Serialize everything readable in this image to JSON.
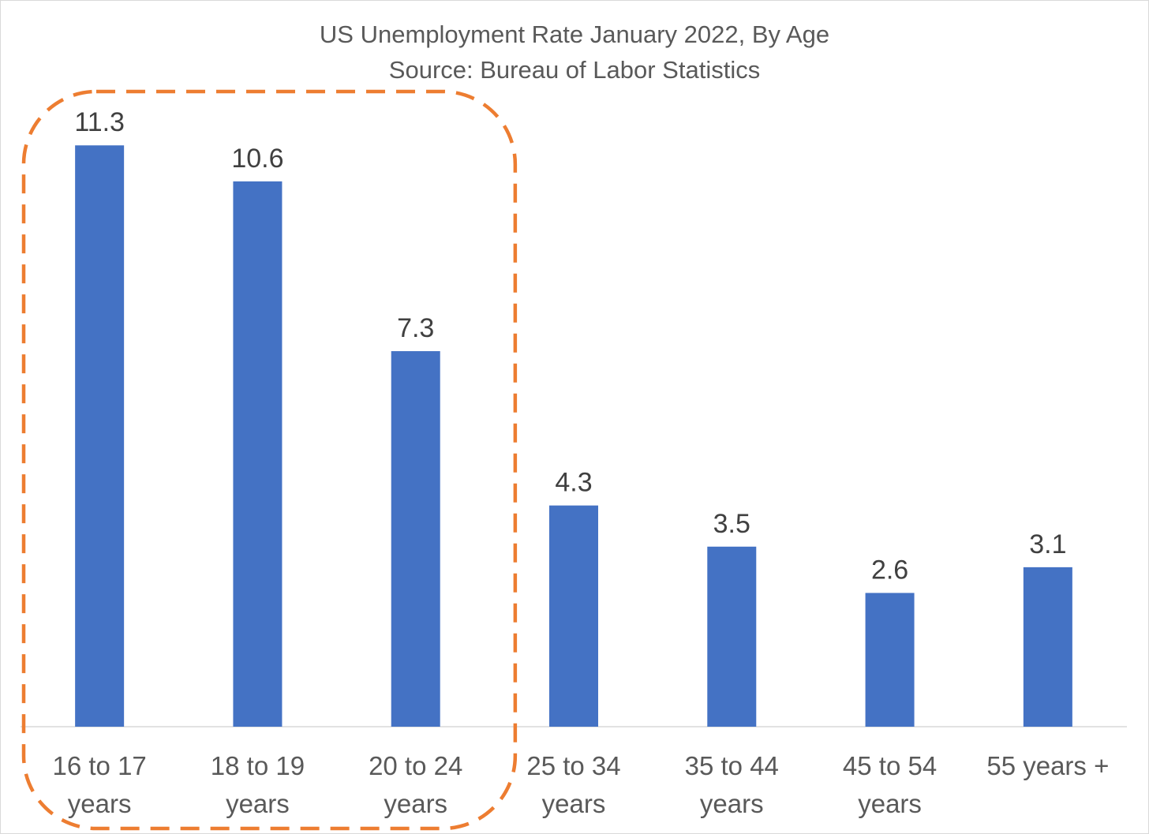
{
  "chart_data": {
    "type": "bar",
    "title": "US Unemployment Rate January 2022, By Age",
    "subtitle": "Source: Bureau of Labor Statistics",
    "categories": [
      [
        "16 to 17",
        "years"
      ],
      [
        "18 to 19",
        "years"
      ],
      [
        "20 to 24",
        "years"
      ],
      [
        "25 to 34",
        "years"
      ],
      [
        "35 to 44",
        "years"
      ],
      [
        "45 to 54",
        "years"
      ],
      [
        "55 years +"
      ]
    ],
    "values": [
      11.3,
      10.6,
      7.3,
      4.3,
      3.5,
      2.6,
      3.1
    ],
    "value_labels": [
      "11.3",
      "10.6",
      "7.3",
      "4.3",
      "3.5",
      "2.6",
      "3.1"
    ],
    "ylim": [
      0,
      12
    ],
    "grid": false,
    "bar_color": "#4472c4",
    "annotation": {
      "type": "dashed-rounded-box",
      "color": "#ed7d31",
      "covers_categories": [
        0,
        1,
        2
      ]
    }
  }
}
